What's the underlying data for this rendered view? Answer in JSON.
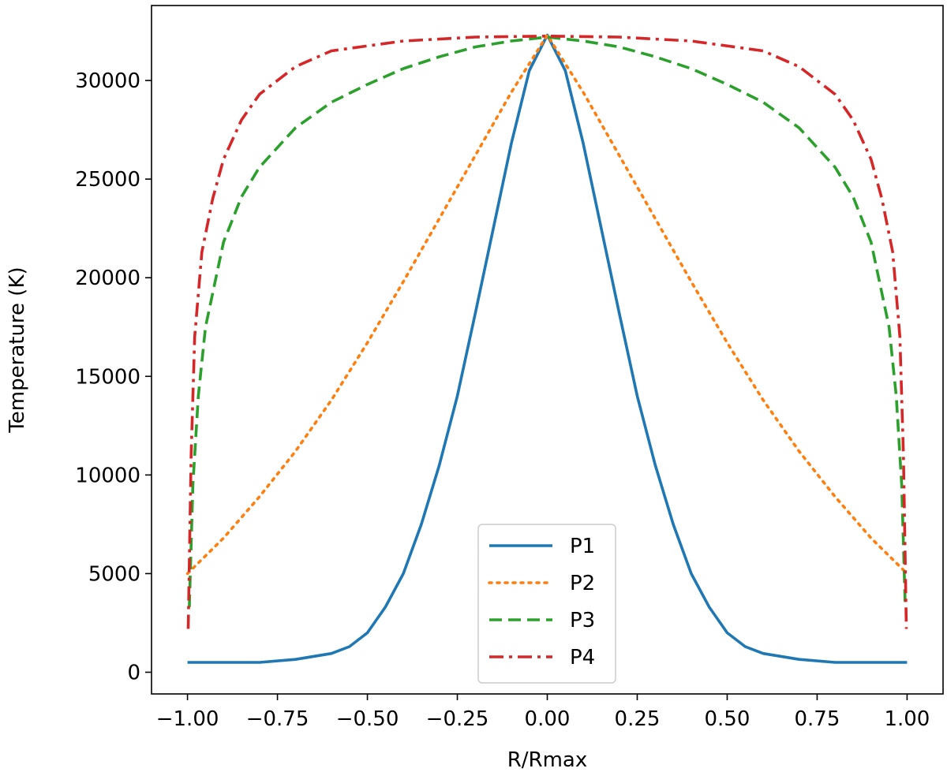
{
  "chart_data": {
    "type": "line",
    "title": "",
    "xlabel": "R/Rmax",
    "ylabel": "Temperature (K)",
    "xlim": [
      -1.1,
      1.1
    ],
    "ylim": [
      -1100,
      33800
    ],
    "xticks": [
      -1.0,
      -0.75,
      -0.5,
      -0.25,
      0.0,
      0.25,
      0.5,
      0.75,
      1.0
    ],
    "xtick_labels": [
      "−1.00",
      "−0.75",
      "−0.50",
      "−0.25",
      "0.00",
      "0.25",
      "0.50",
      "0.75",
      "1.00"
    ],
    "yticks": [
      0,
      5000,
      10000,
      15000,
      20000,
      25000,
      30000
    ],
    "ytick_labels": [
      "0",
      "5000",
      "10000",
      "15000",
      "20000",
      "25000",
      "30000"
    ],
    "grid": false,
    "legend_position": "bottom-center",
    "series": [
      {
        "name": "P1",
        "color": "#1f77b4",
        "style": "solid",
        "x": [
          -1.0,
          -0.9,
          -0.8,
          -0.7,
          -0.6,
          -0.55,
          -0.5,
          -0.45,
          -0.4,
          -0.35,
          -0.3,
          -0.25,
          -0.2,
          -0.15,
          -0.1,
          -0.05,
          0.0,
          0.05,
          0.1,
          0.15,
          0.2,
          0.25,
          0.3,
          0.35,
          0.4,
          0.45,
          0.5,
          0.55,
          0.6,
          0.7,
          0.8,
          0.9,
          1.0
        ],
        "y": [
          500,
          500,
          500,
          650,
          950,
          1300,
          2000,
          3300,
          5000,
          7500,
          10500,
          14000,
          18200,
          22500,
          26800,
          30500,
          32300,
          30500,
          26800,
          22500,
          18200,
          14000,
          10500,
          7500,
          5000,
          3300,
          2000,
          1300,
          950,
          650,
          500,
          500,
          500
        ]
      },
      {
        "name": "P2",
        "color": "#ff7f0e",
        "style": "dotted",
        "x": [
          -1.0,
          -0.9,
          -0.8,
          -0.7,
          -0.6,
          -0.5,
          -0.4,
          -0.3,
          -0.2,
          -0.1,
          0.0,
          0.1,
          0.2,
          0.3,
          0.4,
          0.5,
          0.6,
          0.7,
          0.8,
          0.9,
          1.0
        ],
        "y": [
          5000,
          6800,
          8900,
          11200,
          13800,
          16700,
          19800,
          23000,
          26200,
          29400,
          32300,
          29400,
          26200,
          23000,
          19800,
          16700,
          13800,
          11200,
          8900,
          6800,
          5000
        ]
      },
      {
        "name": "P3",
        "color": "#2ca02c",
        "style": "dashed",
        "x": [
          -0.995,
          -0.985,
          -0.97,
          -0.95,
          -0.9,
          -0.85,
          -0.8,
          -0.7,
          -0.6,
          -0.5,
          -0.4,
          -0.3,
          -0.2,
          -0.1,
          0.0,
          0.1,
          0.2,
          0.3,
          0.4,
          0.5,
          0.6,
          0.7,
          0.8,
          0.85,
          0.9,
          0.95,
          0.97,
          0.985,
          0.995
        ],
        "y": [
          3300,
          9500,
          14000,
          17500,
          21800,
          24100,
          25600,
          27600,
          28900,
          29800,
          30600,
          31200,
          31700,
          32000,
          32200,
          32000,
          31700,
          31200,
          30600,
          29800,
          28900,
          27600,
          25600,
          24100,
          21800,
          17500,
          14000,
          9500,
          3300
        ]
      },
      {
        "name": "P4",
        "color": "#d62728",
        "style": "dashdot",
        "x": [
          -0.998,
          -0.99,
          -0.98,
          -0.96,
          -0.93,
          -0.9,
          -0.85,
          -0.8,
          -0.7,
          -0.6,
          -0.4,
          -0.2,
          0.0,
          0.2,
          0.4,
          0.6,
          0.7,
          0.8,
          0.85,
          0.9,
          0.93,
          0.96,
          0.98,
          0.99,
          0.998
        ],
        "y": [
          2200,
          11000,
          17000,
          21300,
          24000,
          26000,
          28000,
          29300,
          30700,
          31500,
          32000,
          32200,
          32250,
          32200,
          32000,
          31500,
          30700,
          29300,
          28000,
          26000,
          24000,
          21300,
          17000,
          11000,
          2200
        ]
      }
    ]
  }
}
